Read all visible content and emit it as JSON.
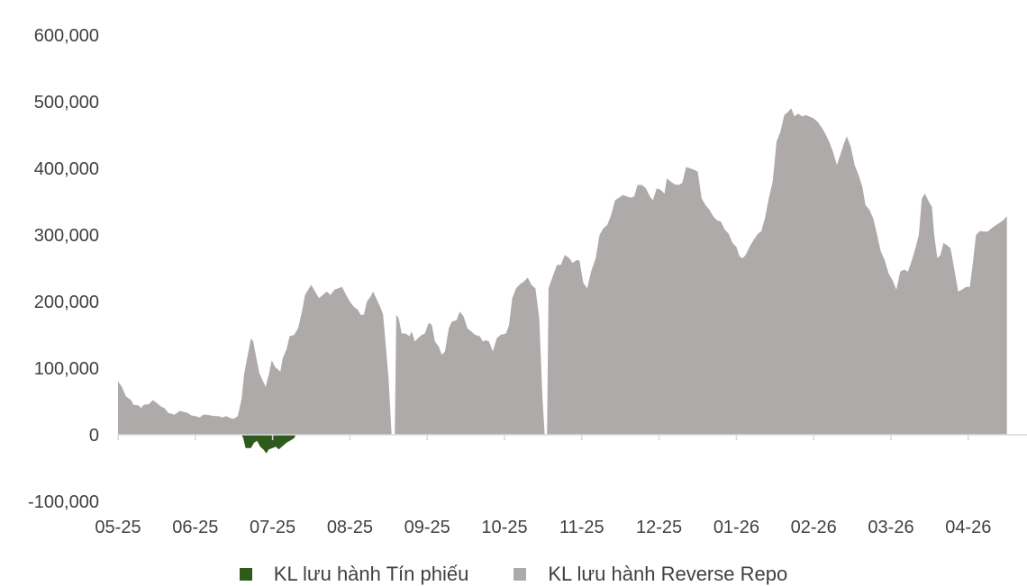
{
  "chart_data": {
    "type": "area",
    "x_tick_labels": [
      "05-25",
      "06-25",
      "07-25",
      "08-25",
      "09-25",
      "10-25",
      "11-25",
      "12-25",
      "01-26",
      "02-26",
      "03-26",
      "04-26"
    ],
    "y_tick_labels": [
      "600,000",
      "500,000",
      "400,000",
      "300,000",
      "200,000",
      "100,000",
      "0",
      "-100,000"
    ],
    "ylim": [
      -100000,
      600000
    ],
    "grid": false,
    "legend_position": "bottom",
    "series": [
      {
        "name": "KL lưu hành Tín phiếu",
        "color": "#2f5a1e",
        "points": [
          [
            1.6,
            0
          ],
          [
            1.62,
            -5000
          ],
          [
            1.65,
            -20000
          ],
          [
            1.72,
            -20000
          ],
          [
            1.76,
            -12000
          ],
          [
            1.8,
            -9000
          ],
          [
            1.84,
            -18000
          ],
          [
            1.88,
            -22000
          ],
          [
            1.92,
            -28000
          ],
          [
            1.95,
            -22000
          ],
          [
            2.0,
            -20000
          ],
          [
            2.04,
            -18000
          ],
          [
            2.08,
            -22000
          ],
          [
            2.12,
            -18000
          ],
          [
            2.18,
            -12000
          ],
          [
            2.24,
            -8000
          ],
          [
            2.28,
            -5000
          ],
          [
            2.3,
            0
          ]
        ]
      },
      {
        "name": "KL lưu hành Reverse Repo",
        "color": "#aeaaaa",
        "points": [
          [
            0.0,
            80000
          ],
          [
            0.05,
            72000
          ],
          [
            0.1,
            58000
          ],
          [
            0.17,
            52000
          ],
          [
            0.2,
            45000
          ],
          [
            0.27,
            44000
          ],
          [
            0.3,
            40000
          ],
          [
            0.33,
            45000
          ],
          [
            0.4,
            46000
          ],
          [
            0.45,
            52000
          ],
          [
            0.5,
            48000
          ],
          [
            0.55,
            43000
          ],
          [
            0.6,
            40000
          ],
          [
            0.65,
            33000
          ],
          [
            0.73,
            30000
          ],
          [
            0.8,
            36000
          ],
          [
            0.9,
            33000
          ],
          [
            0.95,
            29000
          ],
          [
            1.0,
            28000
          ],
          [
            1.06,
            26000
          ],
          [
            1.1,
            30000
          ],
          [
            1.15,
            30000
          ],
          [
            1.2,
            29000
          ],
          [
            1.25,
            28000
          ],
          [
            1.3,
            28000
          ],
          [
            1.35,
            26000
          ],
          [
            1.4,
            28000
          ],
          [
            1.45,
            25000
          ],
          [
            1.5,
            24000
          ],
          [
            1.55,
            28000
          ],
          [
            1.6,
            55000
          ],
          [
            1.63,
            90000
          ],
          [
            1.67,
            115000
          ],
          [
            1.72,
            145000
          ],
          [
            1.75,
            140000
          ],
          [
            1.79,
            115000
          ],
          [
            1.83,
            92000
          ],
          [
            1.87,
            82000
          ],
          [
            1.91,
            72000
          ],
          [
            1.95,
            90000
          ],
          [
            1.99,
            112000
          ],
          [
            2.03,
            102000
          ],
          [
            2.1,
            95000
          ],
          [
            2.13,
            115000
          ],
          [
            2.18,
            128000
          ],
          [
            2.22,
            148000
          ],
          [
            2.28,
            150000
          ],
          [
            2.33,
            160000
          ],
          [
            2.38,
            185000
          ],
          [
            2.42,
            210000
          ],
          [
            2.46,
            218000
          ],
          [
            2.5,
            225000
          ],
          [
            2.55,
            215000
          ],
          [
            2.6,
            205000
          ],
          [
            2.65,
            210000
          ],
          [
            2.7,
            215000
          ],
          [
            2.75,
            210000
          ],
          [
            2.8,
            218000
          ],
          [
            2.85,
            220000
          ],
          [
            2.9,
            222000
          ],
          [
            2.95,
            210000
          ],
          [
            3.0,
            200000
          ],
          [
            3.05,
            192000
          ],
          [
            3.1,
            188000
          ],
          [
            3.14,
            180000
          ],
          [
            3.18,
            180000
          ],
          [
            3.22,
            200000
          ],
          [
            3.27,
            208000
          ],
          [
            3.3,
            215000
          ],
          [
            3.34,
            205000
          ],
          [
            3.4,
            190000
          ],
          [
            3.43,
            180000
          ],
          [
            3.5,
            85000
          ],
          [
            3.54,
            0
          ],
          [
            3.58,
            0
          ],
          [
            3.6,
            180000
          ],
          [
            3.63,
            175000
          ],
          [
            3.67,
            152000
          ],
          [
            3.72,
            152000
          ],
          [
            3.77,
            148000
          ],
          [
            3.8,
            155000
          ],
          [
            3.84,
            140000
          ],
          [
            3.88,
            145000
          ],
          [
            3.93,
            150000
          ],
          [
            3.97,
            152000
          ],
          [
            4.02,
            168000
          ],
          [
            4.06,
            165000
          ],
          [
            4.1,
            140000
          ],
          [
            4.15,
            132000
          ],
          [
            4.19,
            120000
          ],
          [
            4.23,
            125000
          ],
          [
            4.28,
            160000
          ],
          [
            4.32,
            170000
          ],
          [
            4.38,
            172000
          ],
          [
            4.42,
            185000
          ],
          [
            4.47,
            178000
          ],
          [
            4.52,
            160000
          ],
          [
            4.57,
            155000
          ],
          [
            4.62,
            150000
          ],
          [
            4.68,
            148000
          ],
          [
            4.72,
            140000
          ],
          [
            4.76,
            142000
          ],
          [
            4.8,
            140000
          ],
          [
            4.85,
            125000
          ],
          [
            4.9,
            145000
          ],
          [
            4.95,
            150000
          ],
          [
            5.02,
            152000
          ],
          [
            5.06,
            165000
          ],
          [
            5.1,
            205000
          ],
          [
            5.15,
            220000
          ],
          [
            5.2,
            226000
          ],
          [
            5.25,
            230000
          ],
          [
            5.3,
            236000
          ],
          [
            5.35,
            225000
          ],
          [
            5.4,
            220000
          ],
          [
            5.45,
            175000
          ],
          [
            5.49,
            60000
          ],
          [
            5.52,
            0
          ],
          [
            5.55,
            0
          ],
          [
            5.57,
            220000
          ],
          [
            5.63,
            240000
          ],
          [
            5.68,
            255000
          ],
          [
            5.73,
            255000
          ],
          [
            5.78,
            270000
          ],
          [
            5.84,
            265000
          ],
          [
            5.88,
            258000
          ],
          [
            5.93,
            262000
          ],
          [
            5.97,
            262000
          ],
          [
            6.02,
            228000
          ],
          [
            6.07,
            220000
          ],
          [
            6.12,
            245000
          ],
          [
            6.18,
            265000
          ],
          [
            6.23,
            300000
          ],
          [
            6.28,
            310000
          ],
          [
            6.33,
            315000
          ],
          [
            6.38,
            330000
          ],
          [
            6.43,
            352000
          ],
          [
            6.48,
            356000
          ],
          [
            6.53,
            360000
          ],
          [
            6.58,
            358000
          ],
          [
            6.63,
            356000
          ],
          [
            6.68,
            358000
          ],
          [
            6.72,
            375000
          ],
          [
            6.78,
            375000
          ],
          [
            6.83,
            370000
          ],
          [
            6.88,
            358000
          ],
          [
            6.92,
            352000
          ],
          [
            6.97,
            370000
          ],
          [
            7.02,
            368000
          ],
          [
            7.07,
            362000
          ],
          [
            7.1,
            385000
          ],
          [
            7.15,
            380000
          ],
          [
            7.2,
            376000
          ],
          [
            7.25,
            375000
          ],
          [
            7.3,
            378000
          ],
          [
            7.35,
            402000
          ],
          [
            7.4,
            400000
          ],
          [
            7.45,
            398000
          ],
          [
            7.5,
            395000
          ],
          [
            7.55,
            355000
          ],
          [
            7.6,
            345000
          ],
          [
            7.65,
            338000
          ],
          [
            7.7,
            328000
          ],
          [
            7.75,
            322000
          ],
          [
            7.8,
            320000
          ],
          [
            7.85,
            308000
          ],
          [
            7.9,
            302000
          ],
          [
            7.95,
            288000
          ],
          [
            8.0,
            282000
          ],
          [
            8.04,
            268000
          ],
          [
            8.08,
            265000
          ],
          [
            8.12,
            270000
          ],
          [
            8.17,
            282000
          ],
          [
            8.22,
            292000
          ],
          [
            8.28,
            302000
          ],
          [
            8.32,
            305000
          ],
          [
            8.37,
            325000
          ],
          [
            8.42,
            355000
          ],
          [
            8.47,
            380000
          ],
          [
            8.52,
            440000
          ],
          [
            8.57,
            455000
          ],
          [
            8.62,
            480000
          ],
          [
            8.67,
            485000
          ],
          [
            8.71,
            490000
          ],
          [
            8.75,
            478000
          ],
          [
            8.8,
            482000
          ],
          [
            8.85,
            478000
          ],
          [
            8.9,
            480000
          ],
          [
            9.0,
            475000
          ],
          [
            9.05,
            470000
          ],
          [
            9.1,
            462000
          ],
          [
            9.15,
            452000
          ],
          [
            9.2,
            440000
          ],
          [
            9.25,
            425000
          ],
          [
            9.3,
            405000
          ],
          [
            9.35,
            422000
          ],
          [
            9.4,
            440000
          ],
          [
            9.43,
            448000
          ],
          [
            9.48,
            432000
          ],
          [
            9.53,
            405000
          ],
          [
            9.58,
            390000
          ],
          [
            9.63,
            372000
          ],
          [
            9.67,
            345000
          ],
          [
            9.72,
            338000
          ],
          [
            9.77,
            325000
          ],
          [
            9.82,
            300000
          ],
          [
            9.87,
            275000
          ],
          [
            9.92,
            262000
          ],
          [
            9.97,
            242000
          ],
          [
            10.02,
            232000
          ],
          [
            10.07,
            218000
          ],
          [
            10.12,
            245000
          ],
          [
            10.17,
            248000
          ],
          [
            10.22,
            245000
          ],
          [
            10.27,
            262000
          ],
          [
            10.32,
            282000
          ],
          [
            10.36,
            300000
          ],
          [
            10.4,
            355000
          ],
          [
            10.44,
            362000
          ],
          [
            10.48,
            352000
          ],
          [
            10.53,
            342000
          ],
          [
            10.56,
            300000
          ],
          [
            10.6,
            265000
          ],
          [
            10.64,
            270000
          ],
          [
            10.68,
            288000
          ],
          [
            10.72,
            285000
          ],
          [
            10.77,
            280000
          ],
          [
            10.82,
            248000
          ],
          [
            10.87,
            215000
          ],
          [
            10.92,
            218000
          ],
          [
            10.97,
            222000
          ],
          [
            11.02,
            222000
          ],
          [
            11.06,
            258000
          ],
          [
            11.1,
            300000
          ],
          [
            11.15,
            306000
          ],
          [
            11.2,
            305000
          ],
          [
            11.25,
            305000
          ],
          [
            11.3,
            310000
          ],
          [
            11.35,
            314000
          ],
          [
            11.4,
            318000
          ],
          [
            11.45,
            322000
          ],
          [
            11.5,
            328000
          ]
        ]
      }
    ]
  },
  "legend": {
    "items": [
      {
        "label": "KL lưu hành Tín phiếu",
        "color": "#2f5a1e"
      },
      {
        "label": "KL lưu hành Reverse Repo",
        "color": "#aeaaaa"
      }
    ]
  }
}
